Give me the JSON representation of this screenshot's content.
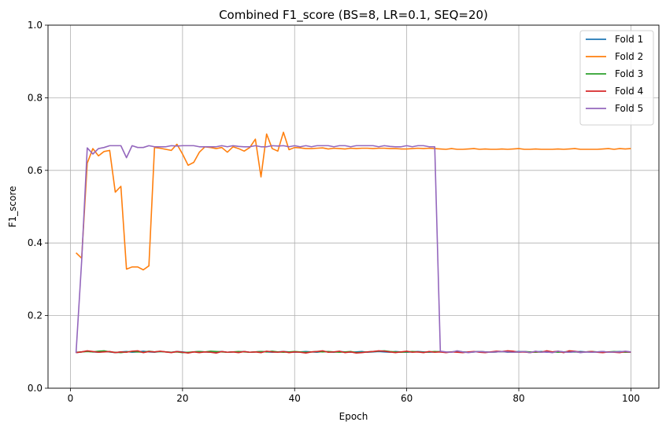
{
  "chart_data": {
    "type": "line",
    "title": "Combined F1_score (BS=8, LR=0.1, SEQ=20)",
    "xlabel": "Epoch",
    "ylabel": "F1_score",
    "xlim": [
      -4,
      105
    ],
    "ylim": [
      0.0,
      1.0
    ],
    "xticks": [
      0,
      20,
      40,
      60,
      80,
      100
    ],
    "xtick_labels": [
      "0",
      "20",
      "40",
      "60",
      "80",
      "100"
    ],
    "yticks": [
      0.0,
      0.2,
      0.4,
      0.6,
      0.8,
      1.0
    ],
    "ytick_labels": [
      "0.0",
      "0.2",
      "0.4",
      "0.6",
      "0.8",
      "1.0"
    ],
    "grid": true,
    "legend_position": "top-right",
    "x_start": 1,
    "series": [
      {
        "name": "Fold 1",
        "color": "#1f77b4",
        "values": [
          0.098,
          0.1,
          0.102,
          0.1,
          0.099,
          0.101,
          0.1,
          0.098,
          0.1,
          0.101,
          0.099,
          0.1,
          0.102,
          0.1,
          0.099,
          0.101,
          0.1,
          0.099,
          0.101,
          0.1,
          0.098,
          0.1,
          0.101,
          0.1,
          0.099,
          0.1,
          0.101,
          0.099,
          0.1,
          0.1,
          0.101,
          0.099,
          0.1,
          0.101,
          0.1,
          0.099,
          0.1,
          0.101,
          0.1,
          0.099,
          0.1,
          0.101,
          0.1,
          0.099,
          0.101,
          0.1,
          0.099,
          0.101,
          0.1,
          0.099,
          0.1,
          0.101,
          0.099,
          0.1,
          0.101,
          0.1,
          0.099,
          0.101,
          0.1,
          0.099,
          0.1,
          0.101,
          0.1,
          0.099,
          0.1,
          0.101,
          0.099,
          0.1,
          0.101,
          0.1,
          0.099,
          0.1,
          0.101,
          0.1,
          0.099,
          0.1,
          0.101,
          0.099,
          0.1,
          0.101,
          0.1,
          0.099,
          0.1,
          0.101,
          0.099,
          0.1,
          0.101,
          0.1,
          0.099,
          0.1,
          0.101,
          0.1,
          0.099,
          0.1,
          0.101,
          0.099,
          0.1,
          0.101,
          0.1,
          0.099
        ]
      },
      {
        "name": "Fold 2",
        "color": "#ff7f0e",
        "values": [
          0.373,
          0.358,
          0.62,
          0.66,
          0.64,
          0.652,
          0.655,
          0.54,
          0.556,
          0.328,
          0.334,
          0.334,
          0.326,
          0.337,
          0.663,
          0.661,
          0.658,
          0.655,
          0.672,
          0.645,
          0.614,
          0.622,
          0.65,
          0.665,
          0.663,
          0.66,
          0.663,
          0.65,
          0.665,
          0.66,
          0.653,
          0.663,
          0.686,
          0.582,
          0.7,
          0.66,
          0.653,
          0.705,
          0.657,
          0.663,
          0.662,
          0.66,
          0.66,
          0.661,
          0.662,
          0.659,
          0.661,
          0.66,
          0.659,
          0.661,
          0.66,
          0.661,
          0.661,
          0.66,
          0.661,
          0.661,
          0.66,
          0.66,
          0.659,
          0.659,
          0.66,
          0.661,
          0.66,
          0.661,
          0.66,
          0.659,
          0.658,
          0.66,
          0.658,
          0.658,
          0.659,
          0.66,
          0.658,
          0.659,
          0.658,
          0.658,
          0.659,
          0.658,
          0.659,
          0.66,
          0.658,
          0.658,
          0.659,
          0.658,
          0.658,
          0.658,
          0.659,
          0.658,
          0.659,
          0.66,
          0.658,
          0.658,
          0.658,
          0.658,
          0.659,
          0.66,
          0.658,
          0.66,
          0.659,
          0.66
        ]
      },
      {
        "name": "Fold 3",
        "color": "#2ca02c",
        "values": [
          0.099,
          0.1,
          0.101,
          0.1,
          0.102,
          0.103,
          0.1,
          0.099,
          0.098,
          0.1,
          0.101,
          0.1,
          0.099,
          0.102,
          0.1,
          0.101,
          0.1,
          0.099,
          0.1,
          0.098,
          0.099,
          0.1,
          0.101,
          0.1,
          0.102,
          0.101,
          0.1,
          0.099,
          0.1,
          0.101,
          0.1,
          0.099,
          0.1,
          0.101,
          0.1,
          0.102,
          0.1,
          0.099,
          0.1,
          0.101,
          0.1,
          0.099,
          0.1,
          0.101,
          0.1,
          0.101,
          0.1,
          0.099,
          0.1,
          0.101,
          0.098,
          0.099,
          0.1,
          0.101,
          0.102,
          0.103,
          0.101,
          0.1,
          0.099,
          0.1,
          0.101,
          0.1,
          0.099,
          0.1,
          0.101,
          0.1,
          0.099,
          0.1,
          0.101,
          0.1,
          0.099,
          0.1,
          0.101,
          0.1,
          0.099,
          0.1,
          0.101,
          0.1,
          0.099,
          0.1,
          0.101,
          0.1,
          0.099,
          0.1,
          0.101,
          0.1,
          0.099,
          0.1,
          0.101,
          0.1,
          0.099,
          0.1,
          0.101,
          0.1,
          0.099,
          0.1,
          0.101,
          0.1,
          0.099,
          0.1
        ]
      },
      {
        "name": "Fold 4",
        "color": "#d62728",
        "values": [
          0.098,
          0.1,
          0.103,
          0.101,
          0.099,
          0.1,
          0.101,
          0.098,
          0.1,
          0.099,
          0.102,
          0.103,
          0.098,
          0.101,
          0.1,
          0.102,
          0.1,
          0.098,
          0.101,
          0.099,
          0.097,
          0.1,
          0.098,
          0.1,
          0.099,
          0.097,
          0.101,
          0.099,
          0.1,
          0.098,
          0.101,
          0.099,
          0.1,
          0.098,
          0.102,
          0.1,
          0.099,
          0.101,
          0.098,
          0.1,
          0.099,
          0.097,
          0.1,
          0.101,
          0.103,
          0.099,
          0.1,
          0.102,
          0.098,
          0.1,
          0.097,
          0.098,
          0.1,
          0.101,
          0.103,
          0.102,
          0.1,
          0.098,
          0.1,
          0.102,
          0.099,
          0.1,
          0.098,
          0.101,
          0.099,
          0.1,
          0.098,
          0.1,
          0.099,
          0.098,
          0.1,
          0.101,
          0.099,
          0.098,
          0.1,
          0.102,
          0.101,
          0.103,
          0.102,
          0.099,
          0.1,
          0.098,
          0.101,
          0.099,
          0.103,
          0.1,
          0.102,
          0.098,
          0.103,
          0.102,
          0.099,
          0.1,
          0.101,
          0.099,
          0.098,
          0.1,
          0.099,
          0.098,
          0.101,
          0.099
        ]
      },
      {
        "name": "Fold 5",
        "color": "#9467bd",
        "values": [
          0.097,
          0.35,
          0.662,
          0.645,
          0.66,
          0.663,
          0.668,
          0.668,
          0.668,
          0.635,
          0.668,
          0.663,
          0.663,
          0.668,
          0.665,
          0.665,
          0.665,
          0.668,
          0.667,
          0.668,
          0.668,
          0.668,
          0.665,
          0.665,
          0.665,
          0.665,
          0.668,
          0.665,
          0.668,
          0.666,
          0.665,
          0.665,
          0.668,
          0.665,
          0.665,
          0.668,
          0.667,
          0.668,
          0.665,
          0.668,
          0.665,
          0.668,
          0.665,
          0.668,
          0.668,
          0.668,
          0.665,
          0.668,
          0.668,
          0.665,
          0.668,
          0.668,
          0.668,
          0.668,
          0.665,
          0.668,
          0.666,
          0.665,
          0.665,
          0.668,
          0.665,
          0.668,
          0.668,
          0.665,
          0.665,
          0.102,
          0.1,
          0.099,
          0.103,
          0.1,
          0.098,
          0.1,
          0.101,
          0.1,
          0.099,
          0.1,
          0.101,
          0.1,
          0.099,
          0.1,
          0.101,
          0.098,
          0.102,
          0.099,
          0.1,
          0.098,
          0.102,
          0.1,
          0.099,
          0.101,
          0.098,
          0.1,
          0.099,
          0.1,
          0.101,
          0.099,
          0.1,
          0.1,
          0.102,
          0.1
        ]
      }
    ]
  }
}
